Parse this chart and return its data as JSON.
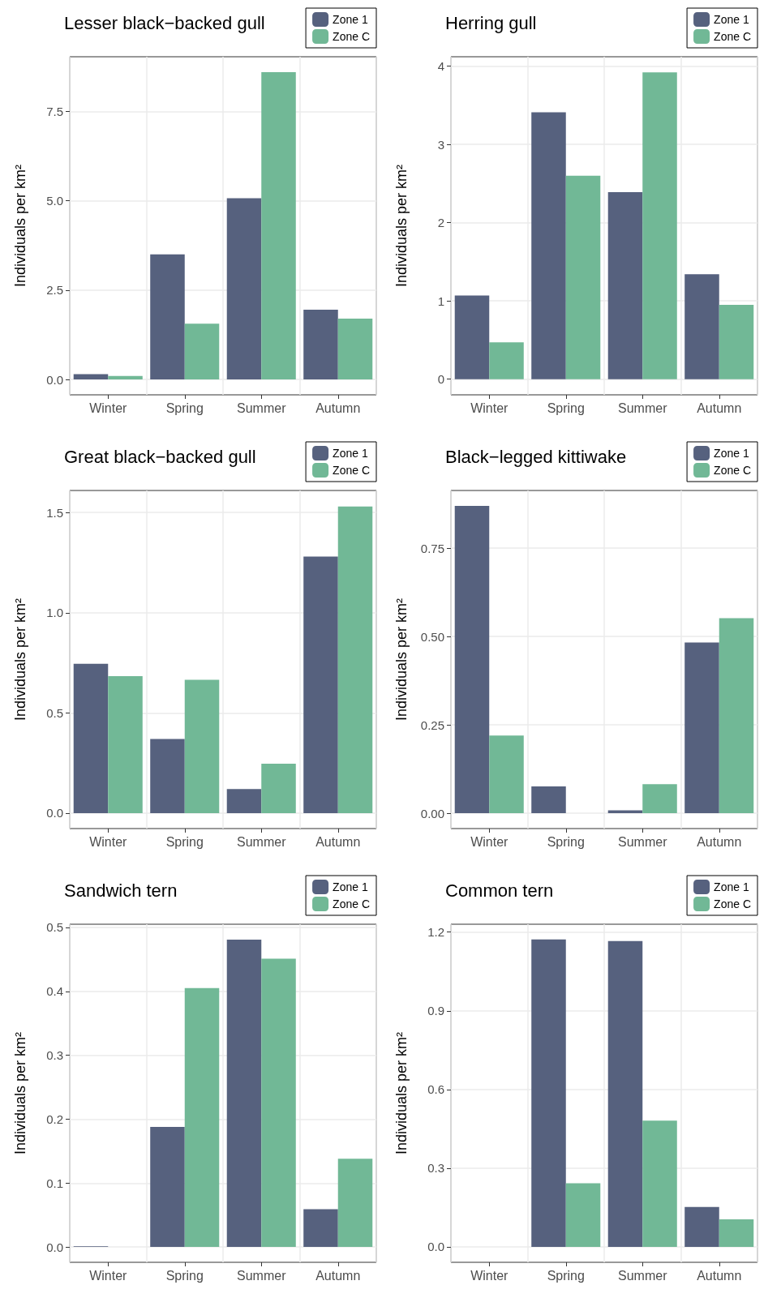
{
  "chart_data": [
    {
      "type": "bar",
      "title": "Lesser black−backed gull",
      "ylabel": "Individuals per km²",
      "categories": [
        "Winter",
        "Spring",
        "Summer",
        "Autumn"
      ],
      "series": [
        {
          "name": "Zone 1",
          "color": "#56617e",
          "values": [
            0.15,
            3.5,
            5.07,
            1.95
          ]
        },
        {
          "name": "Zone C",
          "color": "#71b896",
          "values": [
            0.1,
            1.56,
            8.6,
            1.7
          ]
        }
      ],
      "ylim": [
        -0.43,
        9.03
      ],
      "yticks": [
        {
          "value": 0,
          "label": "0.0"
        },
        2.5,
        {
          "value": 5,
          "label": "5.0"
        },
        7.5
      ],
      "grid": true,
      "legend": "top right"
    },
    {
      "type": "bar",
      "title": "Herring gull",
      "ylabel": "Individuals per km²",
      "categories": [
        "Winter",
        "Spring",
        "Summer",
        "Autumn"
      ],
      "series": [
        {
          "name": "Zone 1",
          "color": "#56617e",
          "values": [
            1.07,
            3.41,
            2.39,
            1.34
          ]
        },
        {
          "name": "Zone C",
          "color": "#71b896",
          "values": [
            0.47,
            2.6,
            3.92,
            0.95
          ]
        }
      ],
      "ylim": [
        -0.2,
        4.12
      ],
      "yticks": [
        0,
        1,
        2,
        3,
        4
      ],
      "grid": true,
      "legend": "top right"
    },
    {
      "type": "bar",
      "title": "Great black−backed gull",
      "ylabel": "Individuals per km²",
      "categories": [
        "Winter",
        "Spring",
        "Summer",
        "Autumn"
      ],
      "series": [
        {
          "name": "Zone 1",
          "color": "#56617e",
          "values": [
            0.745,
            0.37,
            0.12,
            1.28
          ]
        },
        {
          "name": "Zone C",
          "color": "#71b896",
          "values": [
            0.684,
            0.665,
            0.247,
            1.53
          ]
        }
      ],
      "ylim": [
        -0.077,
        1.61
      ],
      "yticks": [
        {
          "value": 0,
          "label": "0.0"
        },
        0.5,
        {
          "value": 1,
          "label": "1.0"
        },
        1.5
      ],
      "grid": true,
      "legend": "top right"
    },
    {
      "type": "bar",
      "title": "Black−legged kittiwake",
      "ylabel": "Individuals per km²",
      "categories": [
        "Winter",
        "Spring",
        "Summer",
        "Autumn"
      ],
      "series": [
        {
          "name": "Zone 1",
          "color": "#56617e",
          "values": [
            0.87,
            0.076,
            0.008,
            0.483
          ]
        },
        {
          "name": "Zone C",
          "color": "#71b896",
          "values": [
            0.22,
            0,
            0.082,
            0.552
          ]
        }
      ],
      "ylim": [
        -0.0435,
        0.9135
      ],
      "yticks": [
        {
          "value": 0,
          "label": "0.00"
        },
        0.25,
        {
          "value": 0.5,
          "label": "0.50"
        },
        0.75
      ],
      "grid": true,
      "legend": "top right"
    },
    {
      "type": "bar",
      "title": "Sandwich tern",
      "ylabel": "Individuals per km²",
      "categories": [
        "Winter",
        "Spring",
        "Summer",
        "Autumn"
      ],
      "series": [
        {
          "name": "Zone 1",
          "color": "#56617e",
          "values": [
            0.001,
            0.188,
            0.481,
            0.059
          ]
        },
        {
          "name": "Zone C",
          "color": "#71b896",
          "values": [
            0,
            0.405,
            0.451,
            0.138
          ]
        }
      ],
      "ylim": [
        -0.024,
        0.505
      ],
      "yticks": [
        {
          "value": 0,
          "label": "0.0"
        },
        0.1,
        0.2,
        0.3,
        0.4,
        0.5
      ],
      "grid": true,
      "legend": "top right"
    },
    {
      "type": "bar",
      "title": "Common tern",
      "ylabel": "Individuals per km²",
      "categories": [
        "Winter",
        "Spring",
        "Summer",
        "Autumn"
      ],
      "series": [
        {
          "name": "Zone 1",
          "color": "#56617e",
          "values": [
            0,
            1.172,
            1.166,
            0.152
          ]
        },
        {
          "name": "Zone C",
          "color": "#71b896",
          "values": [
            0,
            0.242,
            0.481,
            0.105
          ]
        }
      ],
      "ylim": [
        -0.059,
        1.23
      ],
      "yticks": [
        {
          "value": 0,
          "label": "0.0"
        },
        0.3,
        0.6,
        0.9,
        1.2
      ],
      "grid": true,
      "legend": "top right"
    }
  ]
}
